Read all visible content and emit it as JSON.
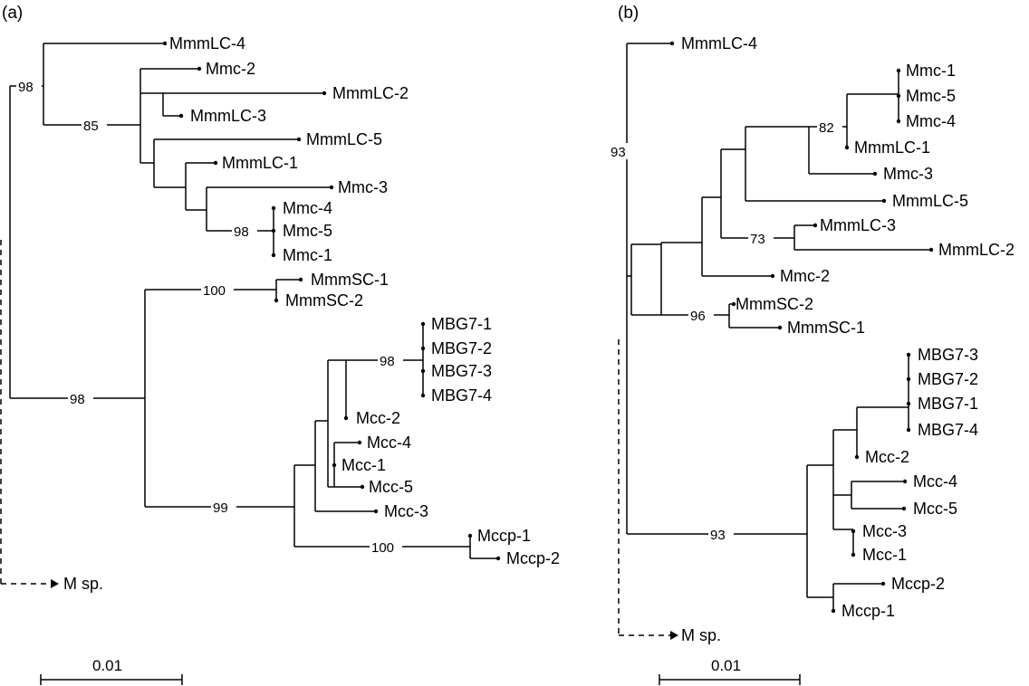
{
  "panels": {
    "a": {
      "label": "(a)",
      "scale_label": "0.01",
      "leaves": [
        "MmmLC-4",
        "Mmc-2",
        "MmmLC-2",
        "MmmLC-3",
        "MmmLC-5",
        "MmmLC-1",
        "Mmc-3",
        "Mmc-4",
        "Mmc-5",
        "Mmc-1",
        "MmmSC-1",
        "MmmSC-2",
        "MBG7-1",
        "MBG7-2",
        "MBG7-3",
        "MBG7-4",
        "Mcc-2",
        "Mcc-4",
        "Mcc-1",
        "Mcc-5",
        "Mcc-3",
        "Mccp-1",
        "Mccp-2",
        "M sp."
      ],
      "bootstraps": [
        "98",
        "85",
        "98",
        "100",
        "98",
        "98",
        "99",
        "100"
      ]
    },
    "b": {
      "label": "(b)",
      "scale_label": "0.01",
      "leaves": [
        "MmmLC-4",
        "Mmc-1",
        "Mmc-5",
        "Mmc-4",
        "MmmLC-1",
        "Mmc-3",
        "MmmLC-5",
        "MmmLC-3",
        "MmmLC-2",
        "Mmc-2",
        "MmmSC-2",
        "MmmSC-1",
        "MBG7-3",
        "MBG7-2",
        "MBG7-1",
        "MBG7-4",
        "Mcc-2",
        "Mcc-4",
        "Mcc-5",
        "Mcc-3",
        "Mcc-1",
        "Mccp-2",
        "Mccp-1",
        "M sp."
      ],
      "bootstraps": [
        "93",
        "82",
        "73",
        "96",
        "93"
      ]
    }
  }
}
